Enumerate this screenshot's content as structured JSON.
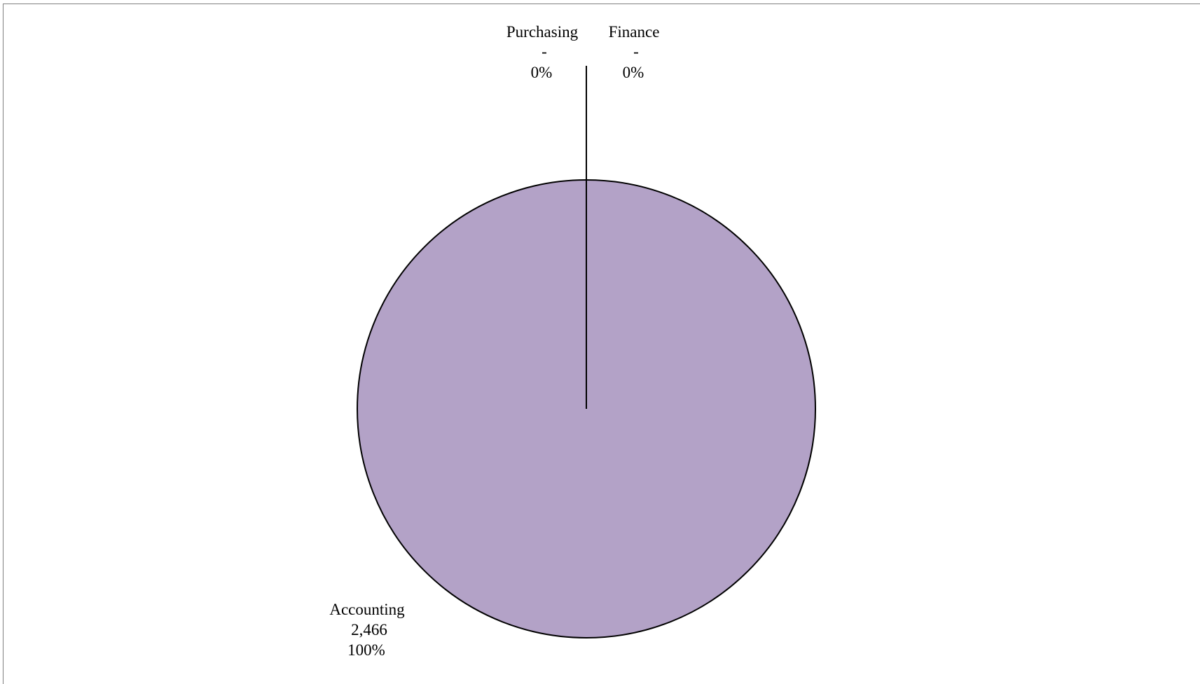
{
  "chart_data": {
    "type": "pie",
    "slices": [
      {
        "name": "Accounting",
        "value": 2466,
        "value_label": "2,466",
        "percent_label": "100%",
        "color": "#b3a2c7"
      },
      {
        "name": "Purchasing",
        "value": 0,
        "value_label": "-",
        "percent_label": "0%",
        "color": "#b3a2c7"
      },
      {
        "name": "Finance",
        "value": 0,
        "value_label": "-",
        "percent_label": "0%",
        "color": "#b3a2c7"
      }
    ],
    "start_angle": "12 o'clock",
    "direction": "clockwise",
    "legend": "none"
  }
}
